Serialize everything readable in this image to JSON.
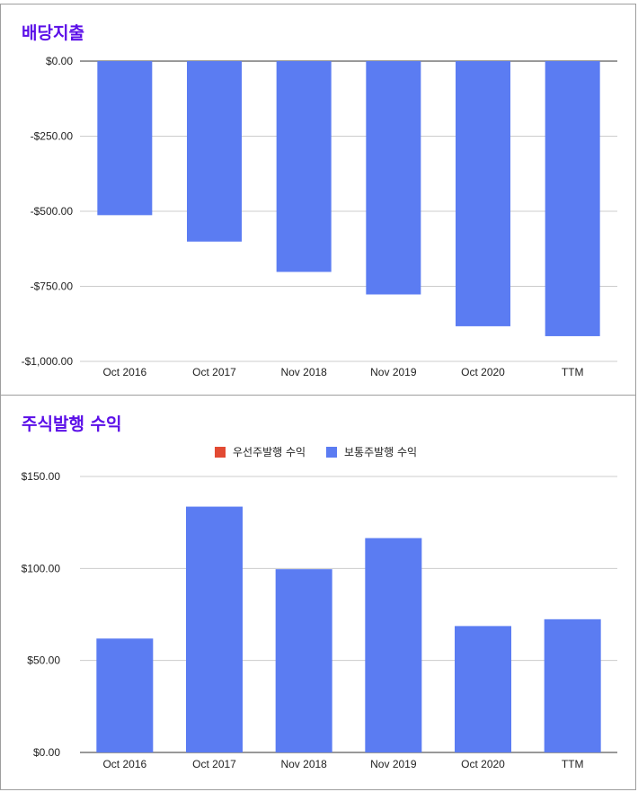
{
  "charts": [
    {
      "title": "배당지출",
      "chart_data": {
        "type": "bar",
        "categories": [
          "Oct 2016",
          "Oct 2017",
          "Nov 2018",
          "Nov 2019",
          "Oct 2020",
          "TTM"
        ],
        "values": [
          -513,
          -601,
          -702,
          -777,
          -883,
          -916
        ],
        "ylim": [
          -1000,
          0
        ],
        "yticks": [
          0,
          -250,
          -500,
          -750,
          -1000
        ],
        "ytick_labels": [
          "$0.00",
          "-$250.00",
          "-$500.00",
          "-$750.00",
          "-$1,000.00"
        ],
        "grid": true,
        "color": "#5b7cf2"
      }
    },
    {
      "title": "주식발행 수익",
      "legend": [
        {
          "label": "우선주발행 수익",
          "color": "#e24a33"
        },
        {
          "label": "보통주발행 수익",
          "color": "#5b7cf2"
        }
      ],
      "chart_data": {
        "type": "bar",
        "categories": [
          "Oct 2016",
          "Oct 2017",
          "Nov 2018",
          "Nov 2019",
          "Oct 2020",
          "TTM"
        ],
        "series": [
          {
            "name": "우선주발행 수익",
            "values": [
              0,
              0,
              0,
              0,
              0,
              0
            ]
          },
          {
            "name": "보통주발행 수익",
            "values": [
              61.9,
              133.6,
              99.6,
              116.5,
              68.7,
              72.4
            ]
          }
        ],
        "ylim": [
          0,
          150
        ],
        "yticks": [
          0,
          50,
          100,
          150
        ],
        "ytick_labels": [
          "$0.00",
          "$50.00",
          "$100.00",
          "$150.00"
        ],
        "grid": true,
        "legend_position": "top-center"
      }
    }
  ]
}
